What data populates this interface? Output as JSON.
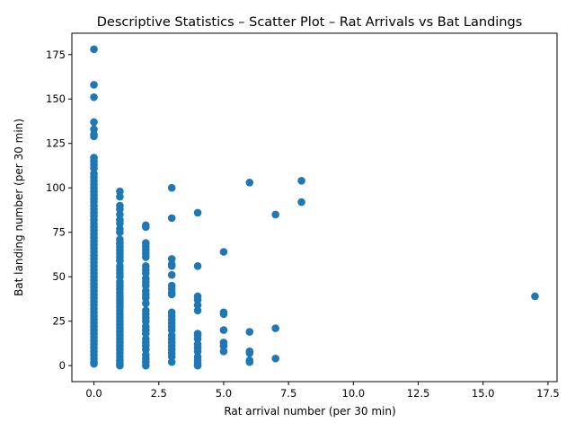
{
  "chart_data": {
    "type": "scatter",
    "title": "Descriptive Statistics – Scatter Plot – Rat Arrivals vs Bat Landings",
    "xlabel": "Rat arrival number (per 30 min)",
    "ylabel": "Bat landing number (per 30 min)",
    "xlim": [
      -0.85,
      17.85
    ],
    "ylim": [
      -9,
      187
    ],
    "x_ticks": [
      0.0,
      2.5,
      5.0,
      7.5,
      10.0,
      12.5,
      15.0,
      17.5
    ],
    "x_tick_labels": [
      "0.0",
      "2.5",
      "5.0",
      "7.5",
      "10.0",
      "12.5",
      "15.0",
      "17.5"
    ],
    "y_ticks": [
      0,
      25,
      50,
      75,
      100,
      125,
      150,
      175
    ],
    "y_tick_labels": [
      "0",
      "25",
      "50",
      "75",
      "100",
      "125",
      "150",
      "175"
    ],
    "grid": false,
    "marker_color": "#1f77b4",
    "points": [
      [
        0,
        178
      ],
      [
        0,
        158
      ],
      [
        0,
        151
      ],
      [
        0,
        137
      ],
      [
        0,
        133
      ],
      [
        0,
        130
      ],
      [
        0,
        129
      ],
      [
        0,
        117
      ],
      [
        0,
        115
      ],
      [
        0,
        113
      ],
      [
        0,
        111
      ],
      [
        0,
        108
      ],
      [
        0,
        106
      ],
      [
        0,
        104
      ],
      [
        0,
        102
      ],
      [
        0,
        100
      ],
      [
        0,
        98
      ],
      [
        0,
        96
      ],
      [
        0,
        94
      ],
      [
        0,
        92
      ],
      [
        0,
        90
      ],
      [
        0,
        88
      ],
      [
        0,
        86
      ],
      [
        0,
        84
      ],
      [
        0,
        82
      ],
      [
        0,
        80
      ],
      [
        0,
        78
      ],
      [
        0,
        76
      ],
      [
        0,
        74
      ],
      [
        0,
        72
      ],
      [
        0,
        70
      ],
      [
        0,
        68
      ],
      [
        0,
        66
      ],
      [
        0,
        64
      ],
      [
        0,
        62
      ],
      [
        0,
        60
      ],
      [
        0,
        58
      ],
      [
        0,
        56
      ],
      [
        0,
        54
      ],
      [
        0,
        52
      ],
      [
        0,
        50
      ],
      [
        0,
        48
      ],
      [
        0,
        46
      ],
      [
        0,
        44
      ],
      [
        0,
        42
      ],
      [
        0,
        40
      ],
      [
        0,
        38
      ],
      [
        0,
        36
      ],
      [
        0,
        34
      ],
      [
        0,
        32
      ],
      [
        0,
        30
      ],
      [
        0,
        28
      ],
      [
        0,
        26
      ],
      [
        0,
        24
      ],
      [
        0,
        22
      ],
      [
        0,
        20
      ],
      [
        0,
        18
      ],
      [
        0,
        16
      ],
      [
        0,
        14
      ],
      [
        0,
        12
      ],
      [
        0,
        10
      ],
      [
        0,
        8
      ],
      [
        0,
        6
      ],
      [
        0,
        4
      ],
      [
        0,
        2
      ],
      [
        0,
        1
      ],
      [
        1,
        98
      ],
      [
        1,
        95
      ],
      [
        1,
        90
      ],
      [
        1,
        88
      ],
      [
        1,
        85
      ],
      [
        1,
        82
      ],
      [
        1,
        80
      ],
      [
        1,
        77
      ],
      [
        1,
        75
      ],
      [
        1,
        71
      ],
      [
        1,
        69
      ],
      [
        1,
        67
      ],
      [
        1,
        65
      ],
      [
        1,
        63
      ],
      [
        1,
        61
      ],
      [
        1,
        59
      ],
      [
        1,
        56
      ],
      [
        1,
        54
      ],
      [
        1,
        52
      ],
      [
        1,
        50
      ],
      [
        1,
        47
      ],
      [
        1,
        45
      ],
      [
        1,
        43
      ],
      [
        1,
        41
      ],
      [
        1,
        39
      ],
      [
        1,
        37
      ],
      [
        1,
        35
      ],
      [
        1,
        33
      ],
      [
        1,
        31
      ],
      [
        1,
        29
      ],
      [
        1,
        27
      ],
      [
        1,
        25
      ],
      [
        1,
        23
      ],
      [
        1,
        21
      ],
      [
        1,
        19
      ],
      [
        1,
        17
      ],
      [
        1,
        15
      ],
      [
        1,
        13
      ],
      [
        1,
        11
      ],
      [
        1,
        9
      ],
      [
        1,
        7
      ],
      [
        1,
        5
      ],
      [
        1,
        3
      ],
      [
        1,
        1
      ],
      [
        1,
        0
      ],
      [
        2,
        79
      ],
      [
        2,
        78
      ],
      [
        2,
        69
      ],
      [
        2,
        67
      ],
      [
        2,
        65
      ],
      [
        2,
        63
      ],
      [
        2,
        61
      ],
      [
        2,
        56
      ],
      [
        2,
        54
      ],
      [
        2,
        52
      ],
      [
        2,
        49
      ],
      [
        2,
        47
      ],
      [
        2,
        45
      ],
      [
        2,
        42
      ],
      [
        2,
        40
      ],
      [
        2,
        38
      ],
      [
        2,
        35
      ],
      [
        2,
        31
      ],
      [
        2,
        29
      ],
      [
        2,
        27
      ],
      [
        2,
        25
      ],
      [
        2,
        22
      ],
      [
        2,
        20
      ],
      [
        2,
        18
      ],
      [
        2,
        15
      ],
      [
        2,
        13
      ],
      [
        2,
        11
      ],
      [
        2,
        9
      ],
      [
        2,
        6
      ],
      [
        2,
        4
      ],
      [
        2,
        2
      ],
      [
        2,
        0
      ],
      [
        3,
        100
      ],
      [
        3,
        83
      ],
      [
        3,
        60
      ],
      [
        3,
        57
      ],
      [
        3,
        56
      ],
      [
        3,
        51
      ],
      [
        3,
        45
      ],
      [
        3,
        43
      ],
      [
        3,
        41
      ],
      [
        3,
        40
      ],
      [
        3,
        30
      ],
      [
        3,
        28
      ],
      [
        3,
        26
      ],
      [
        3,
        24
      ],
      [
        3,
        22
      ],
      [
        3,
        20
      ],
      [
        3,
        17
      ],
      [
        3,
        15
      ],
      [
        3,
        13
      ],
      [
        3,
        11
      ],
      [
        3,
        9
      ],
      [
        3,
        7
      ],
      [
        3,
        5
      ],
      [
        3,
        2
      ],
      [
        4,
        86
      ],
      [
        4,
        56
      ],
      [
        4,
        39
      ],
      [
        4,
        37
      ],
      [
        4,
        34
      ],
      [
        4,
        31
      ],
      [
        4,
        18
      ],
      [
        4,
        17
      ],
      [
        4,
        15
      ],
      [
        4,
        12
      ],
      [
        4,
        10
      ],
      [
        4,
        8
      ],
      [
        4,
        5
      ],
      [
        4,
        3
      ],
      [
        4,
        1
      ],
      [
        4,
        0
      ],
      [
        5,
        64
      ],
      [
        5,
        30
      ],
      [
        5,
        29
      ],
      [
        5,
        20
      ],
      [
        5,
        13
      ],
      [
        5,
        11
      ],
      [
        5,
        8
      ],
      [
        6,
        103
      ],
      [
        6,
        19
      ],
      [
        6,
        8
      ],
      [
        6,
        7
      ],
      [
        6,
        3
      ],
      [
        6,
        2
      ],
      [
        7,
        85
      ],
      [
        7,
        21
      ],
      [
        7,
        4
      ],
      [
        8,
        104
      ],
      [
        8,
        92
      ],
      [
        17,
        39
      ]
    ]
  }
}
